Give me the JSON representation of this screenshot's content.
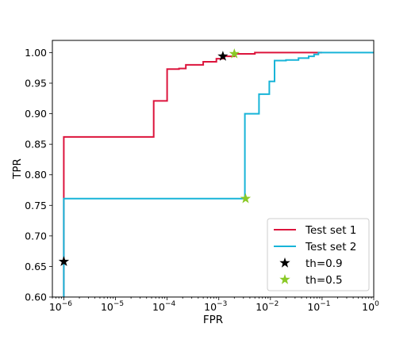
{
  "chart_data": {
    "type": "line",
    "xlabel": "FPR",
    "ylabel": "TPR",
    "xscale": "log",
    "xlim": [
      6e-07,
      1
    ],
    "ylim": [
      0.6,
      1.02
    ],
    "x_ticks": [
      {
        "value": 1e-06,
        "base": "10",
        "exp": "−6"
      },
      {
        "value": 1e-05,
        "base": "10",
        "exp": "−5"
      },
      {
        "value": 0.0001,
        "base": "10",
        "exp": "−4"
      },
      {
        "value": 0.001,
        "base": "10",
        "exp": "−3"
      },
      {
        "value": 0.01,
        "base": "10",
        "exp": "−2"
      },
      {
        "value": 0.1,
        "base": "10",
        "exp": "−1"
      },
      {
        "value": 1,
        "base": "10",
        "exp": "0"
      }
    ],
    "y_ticks": [
      {
        "value": 0.6,
        "label": "0.60"
      },
      {
        "value": 0.65,
        "label": "0.65"
      },
      {
        "value": 0.7,
        "label": "0.70"
      },
      {
        "value": 0.75,
        "label": "0.75"
      },
      {
        "value": 0.8,
        "label": "0.80"
      },
      {
        "value": 0.85,
        "label": "0.85"
      },
      {
        "value": 0.9,
        "label": "0.90"
      },
      {
        "value": 0.95,
        "label": "0.95"
      },
      {
        "value": 1.0,
        "label": "1.00"
      }
    ],
    "grid": false,
    "legend_position": "bottom-right",
    "series": [
      {
        "name": "Test set 1",
        "kind": "step",
        "color": "#dc143c",
        "points": [
          [
            1e-06,
            0.6
          ],
          [
            1e-06,
            0.862
          ],
          [
            5.5e-05,
            0.862
          ],
          [
            5.5e-05,
            0.921
          ],
          [
            0.0001,
            0.921
          ],
          [
            0.0001,
            0.973
          ],
          [
            0.00017,
            0.973
          ],
          [
            0.00017,
            0.974
          ],
          [
            0.00023,
            0.974
          ],
          [
            0.00023,
            0.98
          ],
          [
            0.0005,
            0.98
          ],
          [
            0.0005,
            0.985
          ],
          [
            0.0009,
            0.985
          ],
          [
            0.0009,
            0.99
          ],
          [
            0.0012,
            0.99
          ],
          [
            0.0012,
            0.994
          ],
          [
            0.002,
            0.994
          ],
          [
            0.002,
            0.998
          ],
          [
            0.005,
            0.998
          ],
          [
            0.005,
            1.0
          ],
          [
            0.1,
            1.0
          ]
        ]
      },
      {
        "name": "Test set 2",
        "kind": "step",
        "color": "#17b4d8",
        "points": [
          [
            1e-06,
            0.6
          ],
          [
            1e-06,
            0.761
          ],
          [
            0.0032,
            0.761
          ],
          [
            0.0032,
            0.9
          ],
          [
            0.006,
            0.9
          ],
          [
            0.006,
            0.932
          ],
          [
            0.0095,
            0.932
          ],
          [
            0.0095,
            0.953
          ],
          [
            0.012,
            0.953
          ],
          [
            0.012,
            0.987
          ],
          [
            0.02,
            0.987
          ],
          [
            0.02,
            0.988
          ],
          [
            0.035,
            0.988
          ],
          [
            0.035,
            0.991
          ],
          [
            0.055,
            0.991
          ],
          [
            0.055,
            0.994
          ],
          [
            0.07,
            0.994
          ],
          [
            0.07,
            0.997
          ],
          [
            0.085,
            0.997
          ],
          [
            0.085,
            1.0
          ],
          [
            1.0,
            1.0
          ]
        ]
      },
      {
        "name": "th=0.9",
        "kind": "marker",
        "marker": "star",
        "color": "#000000",
        "points": [
          [
            1e-06,
            0.658
          ],
          [
            0.0012,
            0.994
          ]
        ]
      },
      {
        "name": "th=0.5",
        "kind": "marker",
        "marker": "star",
        "color": "#8ac926",
        "points": [
          [
            0.0033,
            0.761
          ],
          [
            0.002,
            0.998
          ]
        ]
      }
    ]
  }
}
